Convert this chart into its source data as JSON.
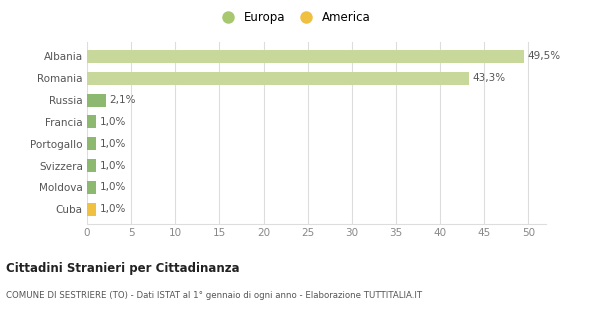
{
  "categories": [
    "Cuba",
    "Moldova",
    "Svizzera",
    "Portogallo",
    "Francia",
    "Russia",
    "Romania",
    "Albania"
  ],
  "values": [
    1.0,
    1.0,
    1.0,
    1.0,
    1.0,
    2.1,
    43.3,
    49.5
  ],
  "labels": [
    "1,0%",
    "1,0%",
    "1,0%",
    "1,0%",
    "1,0%",
    "2,1%",
    "43,3%",
    "49,5%"
  ],
  "colors": [
    "#f0c040",
    "#8db870",
    "#8db870",
    "#8db870",
    "#8db870",
    "#8db870",
    "#c8d89a",
    "#c8d89a"
  ],
  "europa_color": "#a8c870",
  "america_color": "#f0c040",
  "xlim": [
    0,
    52
  ],
  "xticks": [
    0,
    5,
    10,
    15,
    20,
    25,
    30,
    35,
    40,
    45,
    50
  ],
  "title_main": "Cittadini Stranieri per Cittadinanza",
  "title_sub": "COMUNE DI SESTRIERE (TO) - Dati ISTAT al 1° gennaio di ogni anno - Elaborazione TUTTITALIA.IT",
  "legend_europa": "Europa",
  "legend_america": "America",
  "bar_height": 0.6,
  "background_color": "#ffffff",
  "grid_color": "#dddddd",
  "label_fontsize": 7.5,
  "tick_fontsize": 7.5,
  "legend_fontsize": 8.5
}
